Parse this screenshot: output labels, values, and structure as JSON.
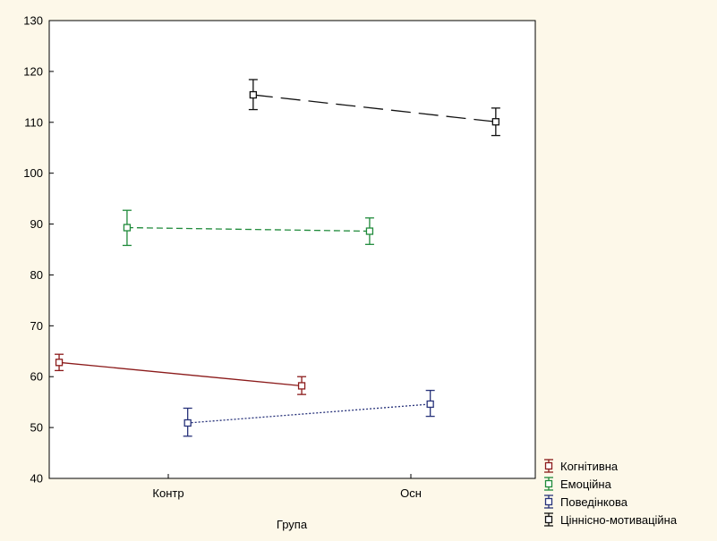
{
  "chart_data": {
    "type": "line",
    "xlabel": "Група",
    "ylabel": "",
    "categories": [
      "Контр",
      "Осн"
    ],
    "ylim": [
      40,
      130
    ],
    "yticks": [
      40,
      50,
      60,
      70,
      80,
      90,
      100,
      110,
      120,
      130
    ],
    "grid": false,
    "legend_position": "bottom-right",
    "series": [
      {
        "name": "Когнітивна",
        "color": "#8b1a1a",
        "dash": "solid",
        "offset": -0.45,
        "values": [
          62.8,
          58.2
        ],
        "lower": [
          61.2,
          56.5
        ],
        "upper": [
          64.4,
          60.0
        ]
      },
      {
        "name": "Емоційна",
        "color": "#1f8a3a",
        "dash": "short",
        "offset": -0.17,
        "values": [
          89.3,
          88.6
        ],
        "lower": [
          85.8,
          86.0
        ],
        "upper": [
          92.7,
          91.2
        ]
      },
      {
        "name": "Поведінкова",
        "color": "#27327a",
        "dash": "dot",
        "offset": 0.08,
        "values": [
          50.9,
          54.6
        ],
        "lower": [
          48.3,
          52.2
        ],
        "upper": [
          53.8,
          57.3
        ]
      },
      {
        "name": "Ціннісно-мотиваційна",
        "color": "#111111",
        "dash": "long",
        "offset": 0.35,
        "values": [
          115.4,
          110.1
        ],
        "lower": [
          112.5,
          107.4
        ],
        "upper": [
          118.4,
          112.8
        ]
      }
    ]
  }
}
